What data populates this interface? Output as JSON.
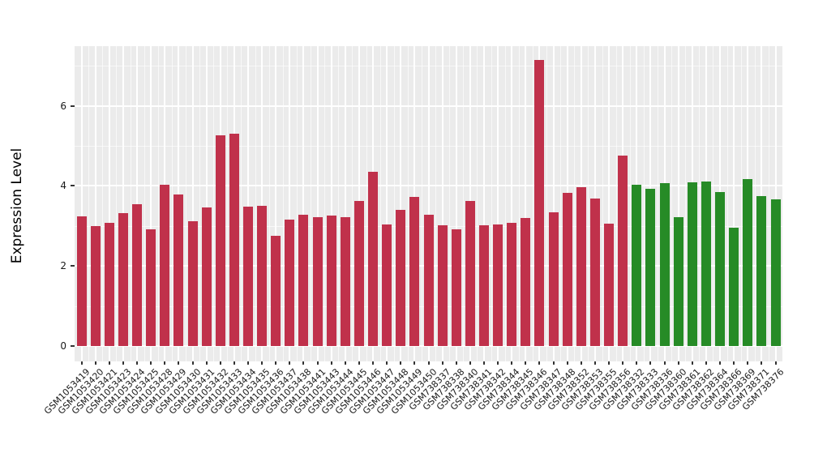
{
  "chart_data": {
    "type": "bar",
    "title": "",
    "xlabel": "",
    "ylabel": "Expression Level",
    "ylim": [
      0,
      7.5
    ],
    "yticks": [
      0,
      2,
      4,
      6
    ],
    "minor_yticks": [
      1,
      3,
      5,
      7
    ],
    "legend_position": "none",
    "grid": true,
    "panel_background": "#EBEBEB",
    "grid_color": "#FFFFFF",
    "axis_text_color": "#1a1a1a",
    "group_colors": [
      "#C0314B",
      "#268B26"
    ],
    "categories": [
      "GSM1053419",
      "GSM1053420",
      "GSM1053421",
      "GSM1053423",
      "GSM1053424",
      "GSM1053425",
      "GSM1053428",
      "GSM1053429",
      "GSM1053430",
      "GSM1053431",
      "GSM1053432",
      "GSM1053433",
      "GSM1053434",
      "GSM1053435",
      "GSM1053436",
      "GSM1053437",
      "GSM1053438",
      "GSM1053441",
      "GSM1053443",
      "GSM1053444",
      "GSM1053445",
      "GSM1053446",
      "GSM1053447",
      "GSM1053448",
      "GSM1053449",
      "GSM1053450",
      "GSM738337",
      "GSM738338",
      "GSM738340",
      "GSM738341",
      "GSM738342",
      "GSM738344",
      "GSM738345",
      "GSM738346",
      "GSM738347",
      "GSM738348",
      "GSM738352",
      "GSM738353",
      "GSM738355",
      "GSM738356",
      "GSM738332",
      "GSM738333",
      "GSM738336",
      "GSM738360",
      "GSM738361",
      "GSM738362",
      "GSM738364",
      "GSM738366",
      "GSM738369",
      "GSM738371",
      "GSM738376"
    ],
    "values": [
      3.24,
      3.0,
      3.07,
      3.31,
      3.55,
      2.91,
      4.02,
      3.79,
      3.11,
      3.46,
      5.27,
      5.3,
      3.48,
      3.51,
      2.75,
      3.16,
      3.27,
      3.21,
      3.25,
      3.21,
      3.63,
      4.36,
      3.04,
      3.4,
      3.72,
      3.28,
      3.02,
      2.92,
      3.62,
      3.02,
      3.04,
      3.08,
      3.19,
      7.15,
      3.34,
      3.82,
      3.97,
      3.68,
      3.06,
      4.76,
      4.03,
      3.93,
      4.06,
      3.22,
      4.08,
      4.11,
      3.85,
      2.96,
      4.18,
      3.75,
      3.66
    ],
    "bar_groups": [
      0,
      0,
      0,
      0,
      0,
      0,
      0,
      0,
      0,
      0,
      0,
      0,
      0,
      0,
      0,
      0,
      0,
      0,
      0,
      0,
      0,
      0,
      0,
      0,
      0,
      0,
      0,
      0,
      0,
      0,
      0,
      0,
      0,
      0,
      0,
      0,
      0,
      0,
      0,
      0,
      1,
      1,
      1,
      1,
      1,
      1,
      1,
      1,
      1,
      1,
      1
    ]
  }
}
